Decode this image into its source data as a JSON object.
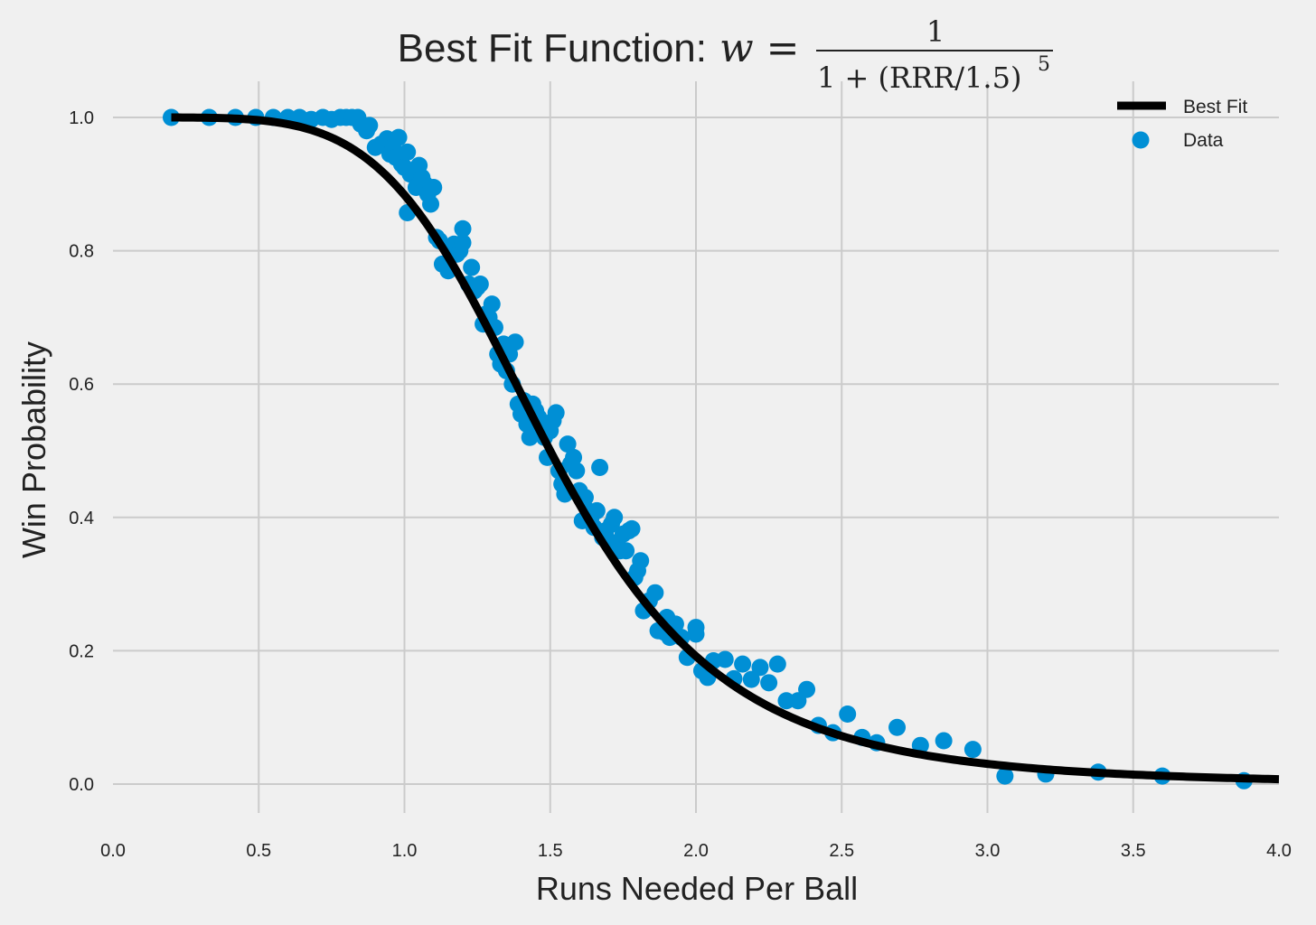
{
  "chart_data": {
    "type": "scatter",
    "title": "Best Fit Function: ",
    "formula": {
      "lhs": "w =",
      "numerator": "1",
      "denominator": "1 + (RRR/1.5)",
      "exponent": "5"
    },
    "xlabel": "Runs Needed Per Ball",
    "ylabel": "Win Probability",
    "xlim": [
      0.0,
      4.0
    ],
    "ylim": [
      -0.05,
      1.05
    ],
    "xticks": [
      "0.0",
      "0.5",
      "1.0",
      "1.5",
      "2.0",
      "2.5",
      "3.0",
      "3.5",
      "4.0"
    ],
    "yticks": [
      "0.0",
      "0.2",
      "0.4",
      "0.6",
      "0.8",
      "1.0"
    ],
    "grid": true,
    "legend_position": "top-right",
    "colors": {
      "background": "#f0f0f0",
      "grid": "#cbcbcb",
      "data": "#008fd5",
      "fit": "#000000"
    },
    "series": [
      {
        "name": "Best Fit",
        "kind": "line",
        "function": "1/(1+(x/1.5)^5)",
        "x_range": [
          0.2,
          4.0
        ]
      },
      {
        "name": "Data",
        "kind": "scatter",
        "points": [
          [
            0.2,
            1.0
          ],
          [
            0.33,
            1.0
          ],
          [
            0.42,
            1.0
          ],
          [
            0.49,
            1.0
          ],
          [
            0.55,
            1.0
          ],
          [
            0.6,
            1.0
          ],
          [
            0.64,
            1.0
          ],
          [
            0.68,
            0.997
          ],
          [
            0.72,
            1.0
          ],
          [
            0.75,
            0.997
          ],
          [
            0.78,
            1.0
          ],
          [
            0.8,
            1.0
          ],
          [
            0.82,
            1.0
          ],
          [
            0.84,
            1.0
          ],
          [
            0.85,
            0.99
          ],
          [
            0.87,
            0.98
          ],
          [
            0.88,
            0.988
          ],
          [
            0.9,
            0.955
          ],
          [
            0.92,
            0.96
          ],
          [
            0.94,
            0.968
          ],
          [
            0.95,
            0.945
          ],
          [
            0.96,
            0.955
          ],
          [
            0.97,
            0.94
          ],
          [
            0.98,
            0.97
          ],
          [
            0.99,
            0.93
          ],
          [
            1.0,
            0.925
          ],
          [
            1.01,
            0.948
          ],
          [
            1.02,
            0.915
          ],
          [
            1.03,
            0.92
          ],
          [
            1.04,
            0.895
          ],
          [
            1.05,
            0.928
          ],
          [
            1.06,
            0.91
          ],
          [
            1.07,
            0.9
          ],
          [
            1.08,
            0.885
          ],
          [
            1.09,
            0.87
          ],
          [
            1.1,
            0.895
          ],
          [
            1.01,
            0.857
          ],
          [
            1.11,
            0.82
          ],
          [
            1.12,
            0.815
          ],
          [
            1.13,
            0.78
          ],
          [
            1.14,
            0.78
          ],
          [
            1.15,
            0.77
          ],
          [
            1.16,
            0.8
          ],
          [
            1.17,
            0.81
          ],
          [
            1.18,
            0.795
          ],
          [
            1.19,
            0.8
          ],
          [
            1.2,
            0.812
          ],
          [
            1.2,
            0.833
          ],
          [
            1.22,
            0.75
          ],
          [
            1.23,
            0.775
          ],
          [
            1.24,
            0.74
          ],
          [
            1.25,
            0.745
          ],
          [
            1.26,
            0.75
          ],
          [
            1.27,
            0.69
          ],
          [
            1.28,
            0.705
          ],
          [
            1.29,
            0.7
          ],
          [
            1.3,
            0.72
          ],
          [
            1.31,
            0.685
          ],
          [
            1.32,
            0.645
          ],
          [
            1.33,
            0.63
          ],
          [
            1.34,
            0.66
          ],
          [
            1.35,
            0.62
          ],
          [
            1.36,
            0.645
          ],
          [
            1.37,
            0.6
          ],
          [
            1.38,
            0.663
          ],
          [
            1.39,
            0.57
          ],
          [
            1.4,
            0.555
          ],
          [
            1.41,
            0.575
          ],
          [
            1.42,
            0.54
          ],
          [
            1.43,
            0.52
          ],
          [
            1.44,
            0.57
          ],
          [
            1.45,
            0.56
          ],
          [
            1.46,
            0.55
          ],
          [
            1.47,
            0.535
          ],
          [
            1.48,
            0.52
          ],
          [
            1.49,
            0.49
          ],
          [
            1.5,
            0.53
          ],
          [
            1.51,
            0.545
          ],
          [
            1.52,
            0.557
          ],
          [
            1.53,
            0.47
          ],
          [
            1.54,
            0.45
          ],
          [
            1.55,
            0.435
          ],
          [
            1.56,
            0.51
          ],
          [
            1.57,
            0.48
          ],
          [
            1.58,
            0.49
          ],
          [
            1.59,
            0.47
          ],
          [
            1.6,
            0.44
          ],
          [
            1.61,
            0.395
          ],
          [
            1.62,
            0.43
          ],
          [
            1.63,
            0.41
          ],
          [
            1.64,
            0.4
          ],
          [
            1.65,
            0.385
          ],
          [
            1.66,
            0.41
          ],
          [
            1.67,
            0.475
          ],
          [
            1.68,
            0.37
          ],
          [
            1.69,
            0.38
          ],
          [
            1.7,
            0.365
          ],
          [
            1.71,
            0.39
          ],
          [
            1.72,
            0.4
          ],
          [
            1.73,
            0.36
          ],
          [
            1.74,
            0.35
          ],
          [
            1.75,
            0.375
          ],
          [
            1.76,
            0.35
          ],
          [
            1.77,
            0.38
          ],
          [
            1.78,
            0.383
          ],
          [
            1.79,
            0.31
          ],
          [
            1.8,
            0.32
          ],
          [
            1.81,
            0.335
          ],
          [
            1.82,
            0.26
          ],
          [
            1.84,
            0.275
          ],
          [
            1.86,
            0.287
          ],
          [
            1.87,
            0.23
          ],
          [
            1.89,
            0.228
          ],
          [
            1.9,
            0.25
          ],
          [
            1.91,
            0.22
          ],
          [
            1.93,
            0.24
          ],
          [
            1.95,
            0.22
          ],
          [
            1.97,
            0.19
          ],
          [
            2.0,
            0.235
          ],
          [
            2.0,
            0.225
          ],
          [
            2.02,
            0.17
          ],
          [
            2.04,
            0.16
          ],
          [
            2.06,
            0.185
          ],
          [
            2.1,
            0.187
          ],
          [
            2.13,
            0.158
          ],
          [
            2.16,
            0.18
          ],
          [
            2.19,
            0.157
          ],
          [
            2.22,
            0.175
          ],
          [
            2.25,
            0.152
          ],
          [
            2.28,
            0.18
          ],
          [
            2.31,
            0.125
          ],
          [
            2.35,
            0.125
          ],
          [
            2.38,
            0.142
          ],
          [
            2.42,
            0.088
          ],
          [
            2.47,
            0.077
          ],
          [
            2.52,
            0.105
          ],
          [
            2.57,
            0.07
          ],
          [
            2.62,
            0.062
          ],
          [
            2.69,
            0.085
          ],
          [
            2.77,
            0.058
          ],
          [
            2.85,
            0.065
          ],
          [
            2.95,
            0.052
          ],
          [
            3.06,
            0.012
          ],
          [
            3.2,
            0.015
          ],
          [
            3.38,
            0.018
          ],
          [
            3.6,
            0.012
          ],
          [
            3.88,
            0.005
          ]
        ]
      }
    ]
  }
}
